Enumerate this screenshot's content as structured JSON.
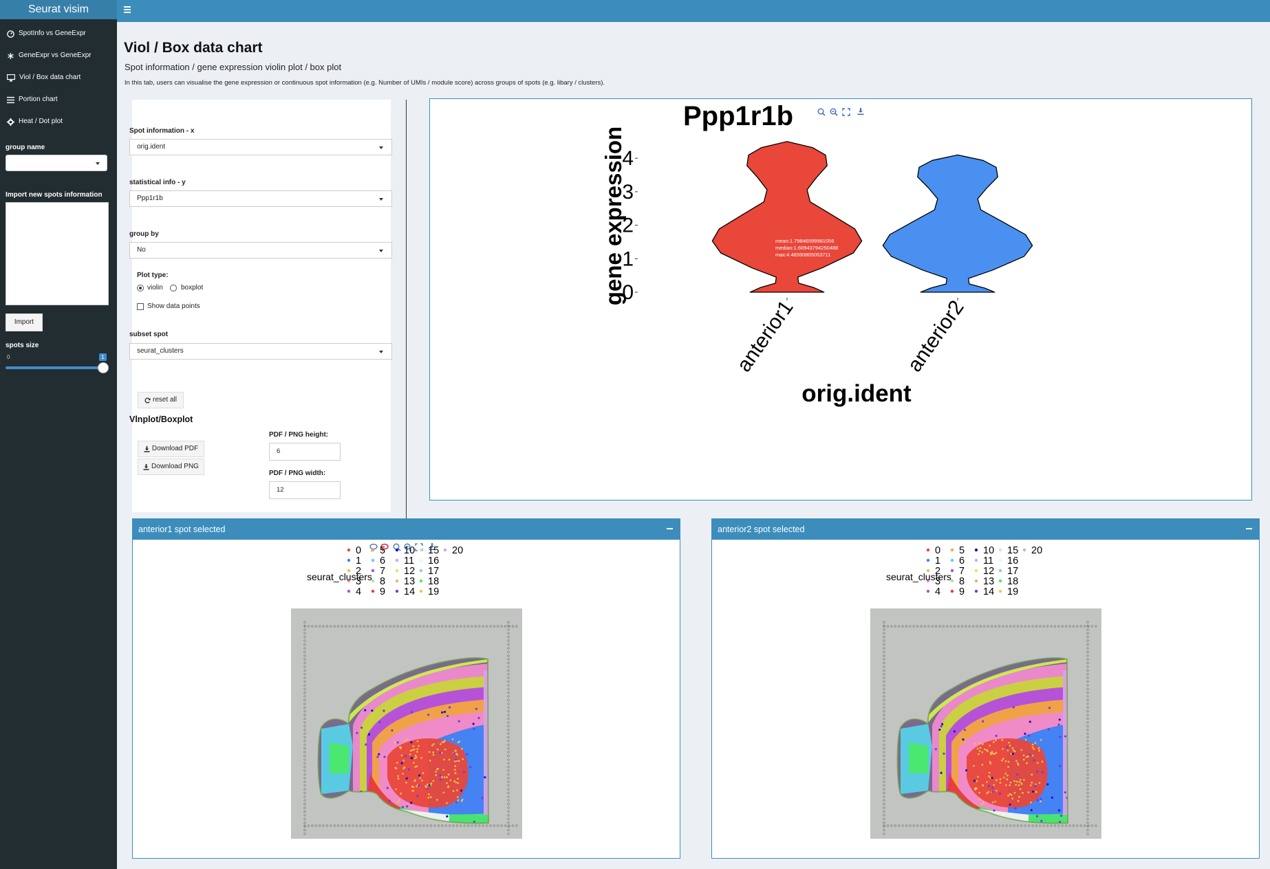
{
  "app": {
    "brand": "Seurat visim"
  },
  "sidebar": {
    "items": [
      {
        "label": "SpotInfo vs GeneExpr",
        "icon": "dashboard-icon"
      },
      {
        "label": "GeneExpr vs GeneExpr",
        "icon": "asterisk-icon"
      },
      {
        "label": "Viol / Box data chart",
        "icon": "desktop-icon"
      },
      {
        "label": "Portion chart",
        "icon": "bars-icon"
      },
      {
        "label": "Heat / Dot plot",
        "icon": "gear-icon"
      }
    ],
    "group_name_label": "group name",
    "group_name_value": "",
    "import_label": "Import new spots information",
    "import_text": "",
    "import_button": "Import",
    "spots_size_label": "spots size",
    "spots_size_min": "0",
    "spots_size_value": "1",
    "spots_size_fraction": 1.0
  },
  "page": {
    "title": "Viol / Box data chart",
    "subtitle": "Spot information / gene expression violin plot / box plot",
    "description": "In this tab, users can visualise the gene expression or continuous spot information (e.g. Number of UMIs / module score) across groups of spots (e.g. libary / clusters)."
  },
  "controls": {
    "spot_info_label": "Spot information - x",
    "spot_info_value": "orig.ident",
    "stat_info_label": "statistical info - y",
    "stat_info_value": "Ppp1r1b",
    "group_by_label": "group by",
    "group_by_value": "No",
    "plot_type_label": "Plot type:",
    "plot_type_options": [
      "violin",
      "boxplot"
    ],
    "plot_type_selected": "violin",
    "show_points_label": "Show data points",
    "show_points_checked": false,
    "subset_label": "subset spot",
    "subset_value": "seurat_clusters",
    "reset_label": "reset all",
    "download_heading": "Vlnplot/Boxplot",
    "download_pdf": "Download PDF",
    "download_png": "Download PNG",
    "height_label": "PDF / PNG height:",
    "height_value": "6",
    "width_label": "PDF / PNG width:",
    "width_value": "12"
  },
  "chart_data": {
    "type": "violin",
    "title": "Ppp1r1b",
    "xlabel": "orig.ident",
    "ylabel": "gene expression",
    "categories": [
      "anterior1",
      "anterior2"
    ],
    "ylim": [
      0,
      4.5
    ],
    "yticks": [
      "0",
      "1",
      "2",
      "3",
      "4"
    ],
    "series": [
      {
        "name": "anterior1",
        "color": "#e8473a",
        "max": 4.5
      },
      {
        "name": "anterior2",
        "color": "#4a90f0",
        "max": 4.1
      }
    ],
    "hover_label": {
      "mean": "mean:1.79846599981056",
      "median": "median:1.60943794250488",
      "max": "max:4.46590805053711"
    }
  },
  "panels": [
    {
      "title": "anterior1 spot selected",
      "legend_title": "seurat_clusters"
    },
    {
      "title": "anterior2 spot selected",
      "legend_title": "seurat_clusters"
    }
  ],
  "clusters": {
    "labels": [
      "0",
      "1",
      "2",
      "3",
      "4",
      "5",
      "6",
      "7",
      "8",
      "9",
      "10",
      "11",
      "12",
      "13",
      "14",
      "15",
      "16",
      "17",
      "18",
      "19",
      "20"
    ],
    "colors": [
      "#e8473a",
      "#3b82f6",
      "#c8d43a",
      "#f08ad0",
      "#b44be0",
      "#f4a640",
      "#59d0e8",
      "#9b59d6",
      "#a5e89a",
      "#e83a3a",
      "#1414c8",
      "#d6a2e8",
      "#d0f04a",
      "#e8b27a",
      "#6b3de0",
      "#c8e8c8",
      "#f2f2f2",
      "#8ac8f0",
      "#4ae86a",
      "#f0c84a",
      "#c8a8f0"
    ]
  },
  "colors": {
    "accent": "#3c8dbc",
    "sidebar": "#222d32",
    "topbar": "#3c8dbc"
  }
}
